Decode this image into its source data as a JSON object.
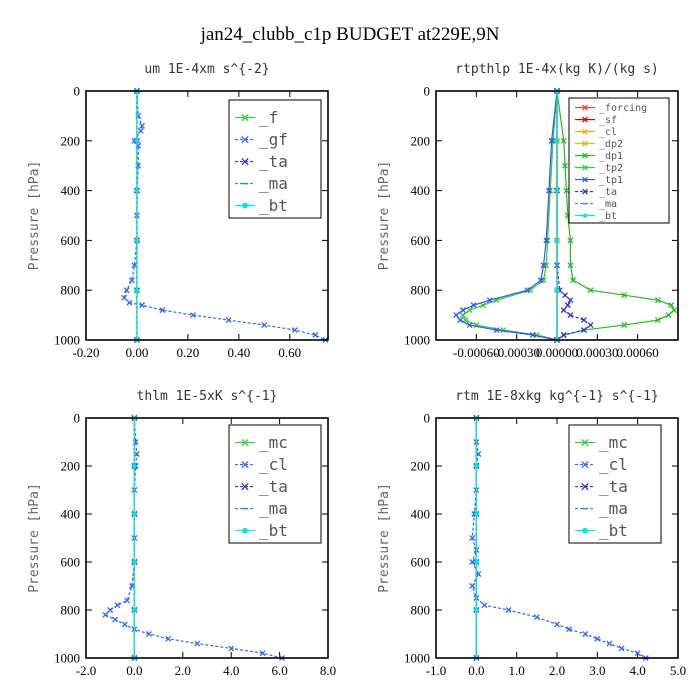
{
  "figure_title": "jan24_clubb_c1p  BUDGET at229E,9N",
  "colors": {
    "forcing": "#ff3333",
    "sf": "#cc0000",
    "cl": "#ffaa00",
    "dp2": "#e6b800",
    "dp1": "#22bb22",
    "tp2": "#33cc33",
    "tp1": "#3355ff",
    "ta": "#3333cc",
    "ma": "#1a99cc",
    "bt": "#00e6e6",
    "f": "#33cc33",
    "gf": "#3366ff",
    "mc": "#33cc33"
  },
  "chart_data": [
    {
      "type": "line",
      "title": "um  1E-4xm s^{-2}",
      "ylabel": "Pressure [hPa]",
      "xlim": [
        -0.2,
        0.75
      ],
      "ylim": [
        1000,
        0
      ],
      "xticks": [
        "-0.20",
        "0.00",
        "0.20",
        "0.40",
        "0.60"
      ],
      "xtick_values": [
        -0.2,
        0.0,
        0.2,
        0.4,
        0.6
      ],
      "yticks": [
        "0",
        "200",
        "400",
        "600",
        "800",
        "1000"
      ],
      "ytick_values": [
        0,
        200,
        400,
        600,
        800,
        1000
      ],
      "legend": {
        "position": "top-right",
        "entries": [
          "_f",
          "_gf",
          "_ta",
          "_ma",
          "_bt"
        ]
      },
      "series": [
        {
          "name": "_f",
          "color_key": "f",
          "marker": "x",
          "dashed": false,
          "y": [
            0,
            200,
            400,
            600,
            800,
            1000
          ],
          "x": [
            0.0,
            0.0,
            0.0,
            0.0,
            0.0,
            0.0
          ]
        },
        {
          "name": "_gf",
          "color_key": "gf",
          "marker": "x",
          "dashed": true,
          "y": [
            0,
            100,
            140,
            160,
            200,
            220,
            300,
            400,
            500,
            600,
            700,
            760,
            800,
            830,
            850,
            860,
            880,
            900,
            920,
            940,
            960,
            980,
            1000
          ],
          "x": [
            0.0,
            0.005,
            0.02,
            0.015,
            -0.01,
            0.005,
            0.005,
            0.0,
            0.0,
            0.0,
            -0.01,
            -0.02,
            -0.04,
            -0.05,
            -0.03,
            0.02,
            0.1,
            0.22,
            0.36,
            0.5,
            0.62,
            0.7,
            0.74
          ]
        },
        {
          "name": "_ta",
          "color_key": "ta",
          "marker": "x",
          "dashed": true,
          "y": [
            0,
            200,
            400,
            600,
            800,
            1000
          ],
          "x": [
            0.0,
            0.0,
            0.0,
            0.0,
            0.0,
            0.0
          ]
        },
        {
          "name": "_ma",
          "color_key": "ma",
          "marker": "dash",
          "dashed": true,
          "y": [
            0,
            200,
            400,
            600,
            800,
            1000
          ],
          "x": [
            0.0,
            0.0,
            0.0,
            0.0,
            0.0,
            0.0
          ]
        },
        {
          "name": "_bt",
          "color_key": "bt",
          "marker": "dot",
          "dashed": false,
          "y": [
            0,
            200,
            400,
            600,
            800,
            1000
          ],
          "x": [
            0.0,
            0.0,
            0.0,
            0.0,
            0.0,
            0.0
          ]
        }
      ]
    },
    {
      "type": "line",
      "title": "rtpthlp  1E-4x(kg K)/(kg s)",
      "ylabel": "Pressure [hPa]",
      "xlim": [
        -0.0009,
        0.0009
      ],
      "ylim": [
        1000,
        0
      ],
      "xticks": [
        "-0.00060",
        "-0.00030",
        "0.00000",
        "0.00030",
        "0.00060"
      ],
      "xtick_values": [
        -0.0006,
        -0.0003,
        0.0,
        0.0003,
        0.0006
      ],
      "yticks": [
        "0",
        "200",
        "400",
        "600",
        "800",
        "1000"
      ],
      "ytick_values": [
        0,
        200,
        400,
        600,
        800,
        1000
      ],
      "legend": {
        "position": "top-right",
        "entries": [
          "_forcing",
          "_sf",
          "_cl",
          "_dp2",
          "_dp1",
          "_tp2",
          "_tp1",
          "_ta",
          "_ma",
          "_bt"
        ]
      },
      "series": [
        {
          "name": "_forcing",
          "color_key": "forcing",
          "marker": "x",
          "dashed": false,
          "y": [
            0,
            200,
            400,
            600,
            800,
            1000
          ],
          "x": [
            0.0,
            0.0,
            0.0,
            0.0,
            0.0,
            0.0
          ]
        },
        {
          "name": "_sf",
          "color_key": "sf",
          "marker": "x",
          "dashed": false,
          "y": [
            0,
            200,
            400,
            600,
            800,
            1000
          ],
          "x": [
            0.0,
            0.0,
            0.0,
            0.0,
            0.0,
            0.0
          ]
        },
        {
          "name": "_cl",
          "color_key": "cl",
          "marker": "x",
          "dashed": false,
          "y": [
            0,
            200,
            400,
            600,
            800,
            1000
          ],
          "x": [
            0.0,
            0.0,
            0.0,
            0.0,
            0.0,
            0.0
          ]
        },
        {
          "name": "_dp2",
          "color_key": "dp2",
          "marker": "x",
          "dashed": false,
          "y": [
            0,
            200,
            400,
            600,
            800,
            1000
          ],
          "x": [
            0.0,
            0.0,
            0.0,
            0.0,
            0.0,
            0.0
          ]
        },
        {
          "name": "_dp1",
          "color_key": "dp1",
          "marker": "x",
          "dashed": false,
          "y": [
            0,
            200,
            300,
            400,
            500,
            600,
            700,
            760,
            800,
            820,
            840,
            860,
            880,
            900,
            920,
            940,
            960,
            980,
            1000
          ],
          "x": [
            0.0,
            5e-05,
            6e-05,
            7e-05,
            8e-05,
            0.0001,
            0.0001,
            0.00012,
            0.00025,
            0.0005,
            0.00075,
            0.00085,
            0.00087,
            0.00083,
            0.00075,
            0.0005,
            0.0002,
            5e-05,
            0.0
          ]
        },
        {
          "name": "_tp2",
          "color_key": "tp2",
          "marker": "x",
          "dashed": false,
          "y": [
            0,
            200,
            400,
            600,
            700,
            760,
            800,
            840,
            860,
            880,
            900,
            920,
            940,
            960,
            980,
            1000
          ],
          "x": [
            0.0,
            -3e-05,
            -5e-05,
            -7e-05,
            -8e-05,
            -0.0001,
            -0.0002,
            -0.00045,
            -0.00055,
            -0.00065,
            -0.0007,
            -0.00068,
            -0.0006,
            -0.0004,
            -0.00015,
            0.0
          ]
        },
        {
          "name": "_tp1",
          "color_key": "tp1",
          "marker": "x",
          "dashed": false,
          "y": [
            0,
            200,
            400,
            600,
            700,
            760,
            800,
            840,
            860,
            880,
            900,
            920,
            940,
            960,
            980,
            1000
          ],
          "x": [
            0.0,
            -4e-05,
            -6e-05,
            -8e-05,
            -0.0001,
            -0.00012,
            -0.00022,
            -0.0005,
            -0.00062,
            -0.0007,
            -0.00075,
            -0.00072,
            -0.00065,
            -0.00045,
            -0.00018,
            0.0
          ]
        },
        {
          "name": "_ta",
          "color_key": "ta",
          "marker": "x",
          "dashed": true,
          "y": [
            0,
            400,
            700,
            800,
            820,
            840,
            860,
            880,
            900,
            920,
            940,
            960,
            980,
            1000
          ],
          "x": [
            0.0,
            0.0,
            0.0,
            2e-05,
            6e-05,
            0.0001,
            8e-05,
            5e-05,
            0.0001,
            0.0002,
            0.00025,
            0.0002,
            5e-05,
            0.0
          ]
        },
        {
          "name": "_ma",
          "color_key": "ma",
          "marker": "dash",
          "dashed": true,
          "y": [
            0,
            200,
            400,
            600,
            800,
            1000
          ],
          "x": [
            0.0,
            0.0,
            0.0,
            0.0,
            0.0,
            0.0
          ]
        },
        {
          "name": "_bt",
          "color_key": "bt",
          "marker": "dot",
          "dashed": false,
          "y": [
            0,
            200,
            400,
            600,
            800,
            1000
          ],
          "x": [
            0.0,
            0.0,
            0.0,
            0.0,
            0.0,
            0.0
          ]
        }
      ]
    },
    {
      "type": "line",
      "title": "thlm  1E-5xK s^{-1}",
      "ylabel": "Pressure [hPa]",
      "xlim": [
        -2.0,
        8.0
      ],
      "ylim": [
        1000,
        0
      ],
      "xticks": [
        "-2.0",
        "0.0",
        "2.0",
        "4.0",
        "6.0",
        "8.0"
      ],
      "xtick_values": [
        -2.0,
        0.0,
        2.0,
        4.0,
        6.0,
        8.0
      ],
      "yticks": [
        "0",
        "200",
        "400",
        "600",
        "800",
        "1000"
      ],
      "ytick_values": [
        0,
        200,
        400,
        600,
        800,
        1000
      ],
      "legend": {
        "position": "top-right",
        "entries": [
          "_mc",
          "_cl",
          "_ta",
          "_ma",
          "_bt"
        ]
      },
      "series": [
        {
          "name": "_mc",
          "color_key": "mc",
          "marker": "x",
          "dashed": false,
          "y": [
            0,
            200,
            400,
            600,
            800,
            1000
          ],
          "x": [
            0.0,
            0.0,
            0.0,
            0.0,
            0.0,
            0.0
          ]
        },
        {
          "name": "_cl",
          "color_key": "gf",
          "marker": "x",
          "dashed": true,
          "y": [
            0,
            100,
            150,
            200,
            300,
            400,
            500,
            600,
            700,
            760,
            780,
            800,
            820,
            840,
            860,
            880,
            900,
            920,
            940,
            960,
            980,
            1000
          ],
          "x": [
            0.0,
            0.05,
            0.1,
            0.05,
            0.0,
            0.0,
            0.0,
            0.0,
            -0.1,
            -0.3,
            -0.7,
            -1.0,
            -1.2,
            -0.8,
            -0.4,
            0.0,
            0.6,
            1.4,
            2.6,
            4.0,
            5.3,
            6.1
          ]
        },
        {
          "name": "_ta",
          "color_key": "ta",
          "marker": "x",
          "dashed": true,
          "y": [
            0,
            200,
            400,
            600,
            800,
            1000
          ],
          "x": [
            0.0,
            0.0,
            0.0,
            0.0,
            0.0,
            0.0
          ]
        },
        {
          "name": "_ma",
          "color_key": "ma",
          "marker": "dash",
          "dashed": true,
          "y": [
            0,
            200,
            400,
            600,
            800,
            1000
          ],
          "x": [
            0.0,
            0.0,
            0.0,
            0.0,
            0.0,
            0.0
          ]
        },
        {
          "name": "_bt",
          "color_key": "bt",
          "marker": "dot",
          "dashed": false,
          "y": [
            0,
            200,
            400,
            600,
            800,
            1000
          ],
          "x": [
            0.0,
            0.0,
            0.0,
            0.0,
            0.0,
            0.0
          ]
        }
      ]
    },
    {
      "type": "line",
      "title": "rtm  1E-8xkg kg^{-1} s^{-1}",
      "ylabel": "Pressure [hPa]",
      "xlim": [
        -1.0,
        5.0
      ],
      "ylim": [
        1000,
        0
      ],
      "xticks": [
        "-1.0",
        "0.0",
        "1.0",
        "2.0",
        "3.0",
        "4.0",
        "5.0"
      ],
      "xtick_values": [
        -1.0,
        0.0,
        1.0,
        2.0,
        3.0,
        4.0,
        5.0
      ],
      "yticks": [
        "0",
        "200",
        "400",
        "600",
        "800",
        "1000"
      ],
      "ytick_values": [
        0,
        200,
        400,
        600,
        800,
        1000
      ],
      "legend": {
        "position": "top-right",
        "entries": [
          "_mc",
          "_cl",
          "_ta",
          "_ma",
          "_bt"
        ]
      },
      "series": [
        {
          "name": "_mc",
          "color_key": "mc",
          "marker": "x",
          "dashed": false,
          "y": [
            0,
            200,
            400,
            600,
            800,
            1000
          ],
          "x": [
            0.0,
            0.0,
            0.0,
            0.0,
            0.0,
            0.0
          ]
        },
        {
          "name": "_cl",
          "color_key": "gf",
          "marker": "x",
          "dashed": true,
          "y": [
            0,
            100,
            150,
            200,
            300,
            400,
            500,
            550,
            600,
            650,
            700,
            750,
            780,
            800,
            830,
            860,
            880,
            900,
            920,
            940,
            960,
            980,
            1000
          ],
          "x": [
            0.0,
            0.0,
            0.05,
            0.0,
            0.0,
            -0.05,
            -0.1,
            0.0,
            -0.1,
            0.05,
            -0.1,
            0.0,
            0.2,
            0.8,
            1.5,
            2.0,
            2.3,
            2.7,
            3.0,
            3.3,
            3.6,
            4.0,
            4.2
          ]
        },
        {
          "name": "_ta",
          "color_key": "ta",
          "marker": "x",
          "dashed": true,
          "y": [
            0,
            200,
            400,
            600,
            800,
            1000
          ],
          "x": [
            0.0,
            0.0,
            0.0,
            0.0,
            0.0,
            0.0
          ]
        },
        {
          "name": "_ma",
          "color_key": "ma",
          "marker": "dash",
          "dashed": true,
          "y": [
            0,
            200,
            400,
            600,
            800,
            1000
          ],
          "x": [
            0.0,
            0.0,
            0.0,
            0.0,
            0.0,
            0.0
          ]
        },
        {
          "name": "_bt",
          "color_key": "bt",
          "marker": "dot",
          "dashed": false,
          "y": [
            0,
            200,
            400,
            600,
            800,
            1000
          ],
          "x": [
            0.0,
            0.0,
            0.0,
            0.0,
            0.0,
            0.0
          ]
        }
      ]
    }
  ]
}
